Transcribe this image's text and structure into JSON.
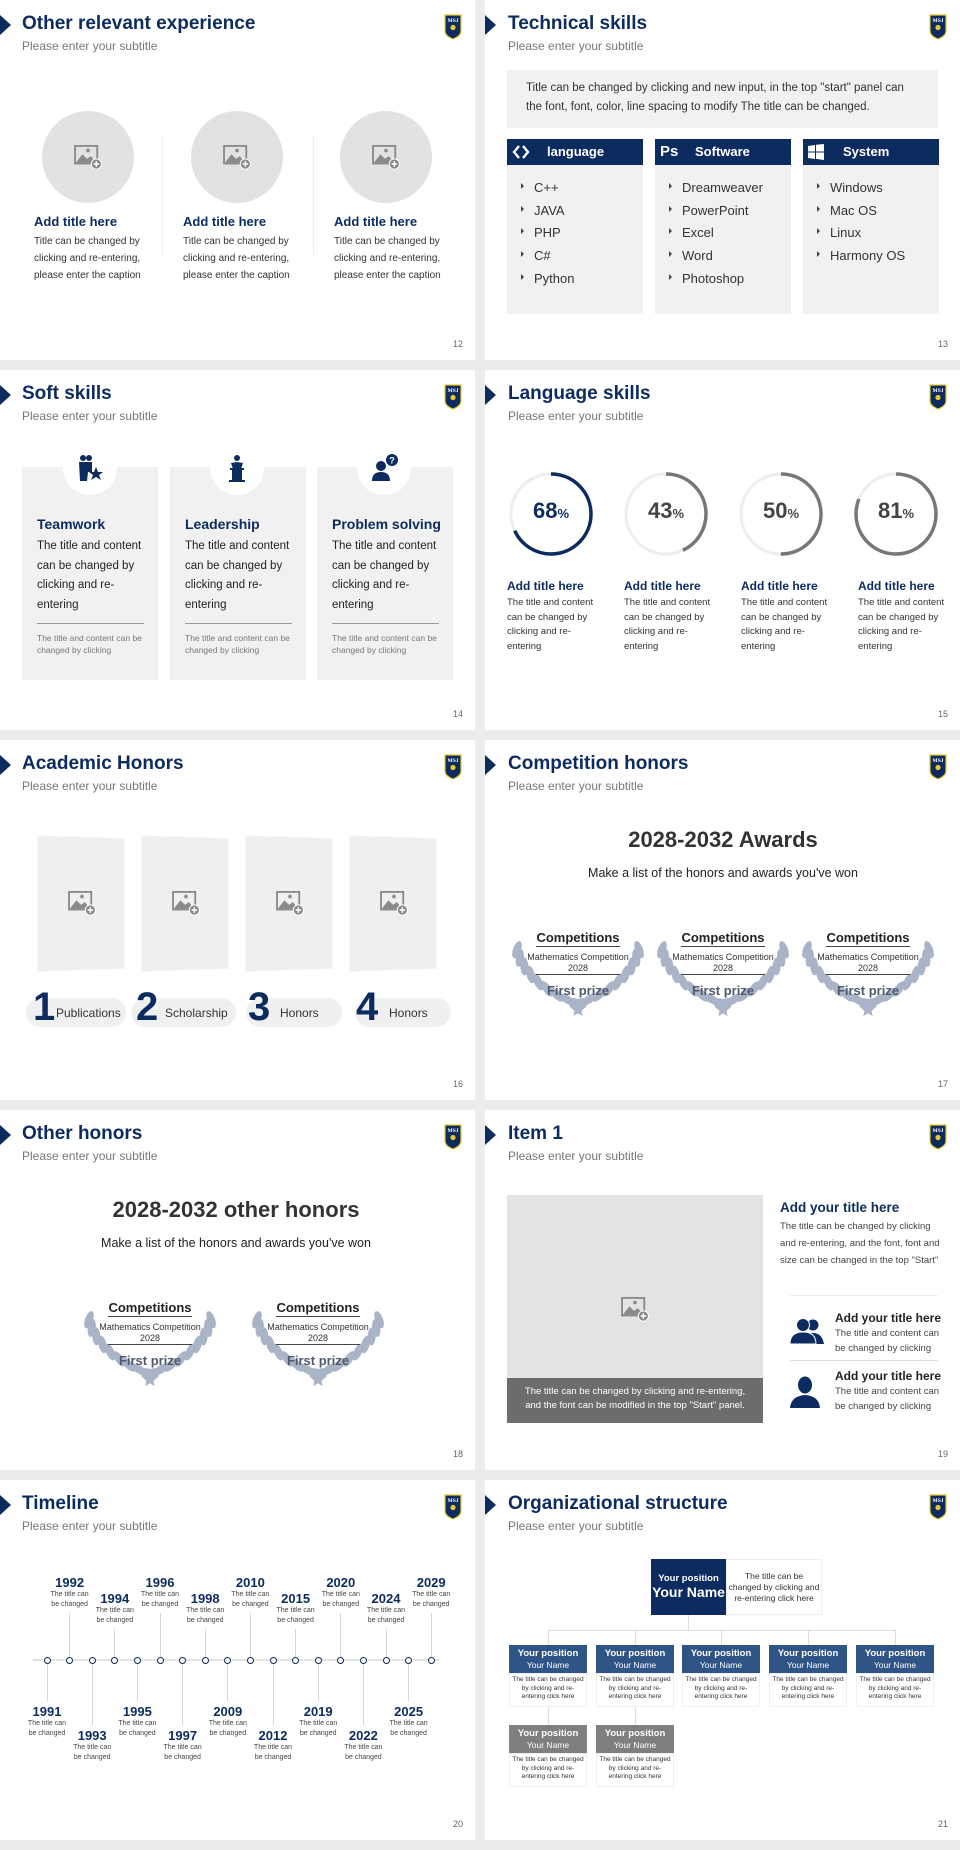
{
  "logo_text": "MSJ",
  "colors": {
    "navy": "#0c2b5f",
    "mid_blue": "#2f5486",
    "gray": "#7f7f7f",
    "panel": "#f1f1f1",
    "laurel": "#aab4c7",
    "ring_gray": "#777777"
  },
  "slides": [
    {
      "page": "12",
      "title": "Other relevant experience",
      "subtitle": "Please enter your subtitle",
      "cards": [
        {
          "icon": "image-placeholder-icon",
          "title": "Add title here",
          "lines": [
            "Title can be changed by",
            "clicking and re-entering,",
            "please enter the caption"
          ]
        },
        {
          "icon": "image-placeholder-icon",
          "title": "Add title here",
          "lines": [
            "Title can be changed by",
            "clicking and re-entering,",
            "please enter the caption"
          ]
        },
        {
          "icon": "image-placeholder-icon",
          "title": "Add title here",
          "lines": [
            "Title can be changed by",
            "clicking and re-entering,",
            "please enter the caption"
          ]
        }
      ]
    },
    {
      "page": "13",
      "title": "Technical skills",
      "subtitle": "Please enter your subtitle",
      "intro": [
        "Title can be changed by clicking and new input, in the top \"start\" panel can",
        "the font, font, color, line spacing to modify The title can be changed."
      ],
      "columns": [
        {
          "icon": "code-icon",
          "label": "language",
          "items": [
            "C++",
            "JAVA",
            "PHP",
            "C#",
            "Python"
          ]
        },
        {
          "icon": "photoshop-icon",
          "badge": "Ps",
          "label": "Software",
          "items": [
            "Dreamweaver",
            "PowerPoint",
            "Excel",
            "Word",
            "Photoshop"
          ]
        },
        {
          "icon": "windows-icon",
          "label": "System",
          "items": [
            "Windows",
            "Mac OS",
            "Linux",
            "Harmony OS"
          ]
        }
      ]
    },
    {
      "page": "14",
      "title": "Soft skills",
      "subtitle": "Please enter your subtitle",
      "cards": [
        {
          "icon": "teamwork-icon",
          "title": "Teamwork",
          "lines": [
            "The title and content",
            "can be changed by",
            "clicking and re-",
            "entering"
          ],
          "note": [
            "The title and content can be",
            "changed by clicking"
          ]
        },
        {
          "icon": "leadership-podium-icon",
          "title": "Leadership",
          "lines": [
            "The title and content",
            "can be changed by",
            "clicking and re-",
            "entering"
          ],
          "note": [
            "The title and content can be",
            "changed by clicking"
          ]
        },
        {
          "icon": "question-person-icon",
          "title": "Problem solving",
          "lines": [
            "The title and content",
            "can be changed by",
            "clicking and re-",
            "entering"
          ],
          "note": [
            "The title and content can be",
            "changed by clicking"
          ]
        }
      ]
    },
    {
      "page": "15",
      "title": "Language skills",
      "subtitle": "Please enter your subtitle",
      "items": [
        {
          "value": 68,
          "unit": "%",
          "title": "Add title here",
          "lines": [
            "The title and content",
            "can be changed by",
            "clicking and re-",
            "entering"
          ]
        },
        {
          "value": 43,
          "unit": "%",
          "title": "Add title here",
          "lines": [
            "The title and content",
            "can be changed by",
            "clicking and re-",
            "entering"
          ]
        },
        {
          "value": 50,
          "unit": "%",
          "title": "Add title here",
          "lines": [
            "The title and content",
            "can be changed by",
            "clicking and re-",
            "entering"
          ]
        },
        {
          "value": 81,
          "unit": "%",
          "title": "Add title here",
          "lines": [
            "The title and content",
            "can be changed by",
            "clicking and re-",
            "entering"
          ]
        }
      ]
    },
    {
      "page": "16",
      "title": "Academic Honors",
      "subtitle": "Please enter your subtitle",
      "items": [
        {
          "num": "1",
          "label": "Publications"
        },
        {
          "num": "2",
          "label": "Scholarship"
        },
        {
          "num": "3",
          "label": "Honors"
        },
        {
          "num": "4",
          "label": "Honors"
        }
      ]
    },
    {
      "page": "17",
      "title": "Competition honors",
      "subtitle": "Please enter your subtitle",
      "heading": "2028-2032 Awards",
      "subheading": "Make a list of the honors and awards you've won",
      "awards": [
        {
          "category": "Competitions",
          "event": "Mathematics Competition",
          "year": "2028",
          "prize": "First prize"
        },
        {
          "category": "Competitions",
          "event": "Mathematics Competition",
          "year": "2028",
          "prize": "First prize"
        },
        {
          "category": "Competitions",
          "event": "Mathematics Competition",
          "year": "2028",
          "prize": "First prize"
        }
      ]
    },
    {
      "page": "18",
      "title": "Other honors",
      "subtitle": "Please enter your subtitle",
      "heading": "2028-2032 other honors",
      "subheading": "Make a list of the honors and awards you've won",
      "awards": [
        {
          "category": "Competitions",
          "event": "Mathematics Competition",
          "year": "2028",
          "prize": "First prize"
        },
        {
          "category": "Competitions",
          "event": "Mathematics Competition",
          "year": "2028",
          "prize": "First prize"
        }
      ]
    },
    {
      "page": "19",
      "title": "Item 1",
      "subtitle": "Please enter your subtitle",
      "caption": [
        "The title can be changed by clicking and re-entering,",
        "and the font can be modified in the top \"Start\" panel."
      ],
      "main": {
        "title": "Add your title here",
        "lines": [
          "The title can be changed by clicking",
          "and re-entering, and the font, font and",
          "size can be changed in the top \"Start\""
        ]
      },
      "items": [
        {
          "icon": "group-icon",
          "title": "Add your title here",
          "lines": [
            "The title and content can",
            "be changed by clicking"
          ]
        },
        {
          "icon": "person-icon",
          "title": "Add your title here",
          "lines": [
            "The title and content can",
            "be changed by clicking"
          ]
        }
      ]
    },
    {
      "page": "20",
      "title": "Timeline",
      "subtitle": "Please enter your subtitle",
      "events": [
        {
          "year": "1991",
          "text": [
            "The title can",
            "be changed"
          ]
        },
        {
          "year": "1992",
          "text": [
            "The title can",
            "be changed"
          ]
        },
        {
          "year": "1993",
          "text": [
            "The title can",
            "be changed"
          ]
        },
        {
          "year": "1994",
          "text": [
            "The title can",
            "be changed"
          ]
        },
        {
          "year": "1995",
          "text": [
            "The title can",
            "be changed"
          ]
        },
        {
          "year": "1996",
          "text": [
            "The title can",
            "be changed"
          ]
        },
        {
          "year": "1997",
          "text": [
            "The title can",
            "be changed"
          ]
        },
        {
          "year": "1998",
          "text": [
            "The title can",
            "be changed"
          ]
        },
        {
          "year": "2009",
          "text": [
            "The title can",
            "be changed"
          ]
        },
        {
          "year": "2010",
          "text": [
            "The title can",
            "be changed"
          ]
        },
        {
          "year": "2012",
          "text": [
            "The title can",
            "be changed"
          ]
        },
        {
          "year": "2015",
          "text": [
            "The title can",
            "be changed"
          ]
        },
        {
          "year": "2019",
          "text": [
            "The title can",
            "be changed"
          ]
        },
        {
          "year": "2020",
          "text": [
            "The title can",
            "be changed"
          ]
        },
        {
          "year": "2022",
          "text": [
            "The title can",
            "be changed"
          ]
        },
        {
          "year": "2024",
          "text": [
            "The title can",
            "be changed"
          ]
        },
        {
          "year": "2025",
          "text": [
            "The title can",
            "be changed"
          ]
        },
        {
          "year": "2029",
          "text": [
            "The title can",
            "be changed"
          ]
        }
      ]
    },
    {
      "page": "21",
      "title": "Organizational structure",
      "subtitle": "Please enter your subtitle",
      "root": {
        "position": "Your position",
        "name": "Your Name",
        "desc": [
          "The title can be",
          "changed by clicking and",
          "re-entering click here"
        ]
      },
      "level2": [
        {
          "position": "Your position",
          "name": "Your Name",
          "desc": [
            "The title can be changed",
            "by clicking and re-",
            "entering click here"
          ]
        },
        {
          "position": "Your position",
          "name": "Your Name",
          "desc": [
            "The title can be changed",
            "by clicking and re-",
            "entering click here"
          ]
        },
        {
          "position": "Your position",
          "name": "Your Name",
          "desc": [
            "The title can be changed",
            "by clicking and re-",
            "entering click here"
          ]
        },
        {
          "position": "Your position",
          "name": "Your Name",
          "desc": [
            "The title can be changed",
            "by clicking and re-",
            "entering click here"
          ]
        },
        {
          "position": "Your position",
          "name": "Your Name",
          "desc": [
            "The title can be changed",
            "by clicking and re-",
            "entering click here"
          ]
        }
      ],
      "level3": [
        {
          "position": "Your position",
          "name": "Your Name",
          "desc": [
            "The title can be changed",
            "by clicking and re-",
            "entering click here"
          ]
        },
        {
          "position": "Your position",
          "name": "Your Name",
          "desc": [
            "The title can be changed",
            "by clicking and re-",
            "entering click here"
          ]
        }
      ]
    }
  ]
}
